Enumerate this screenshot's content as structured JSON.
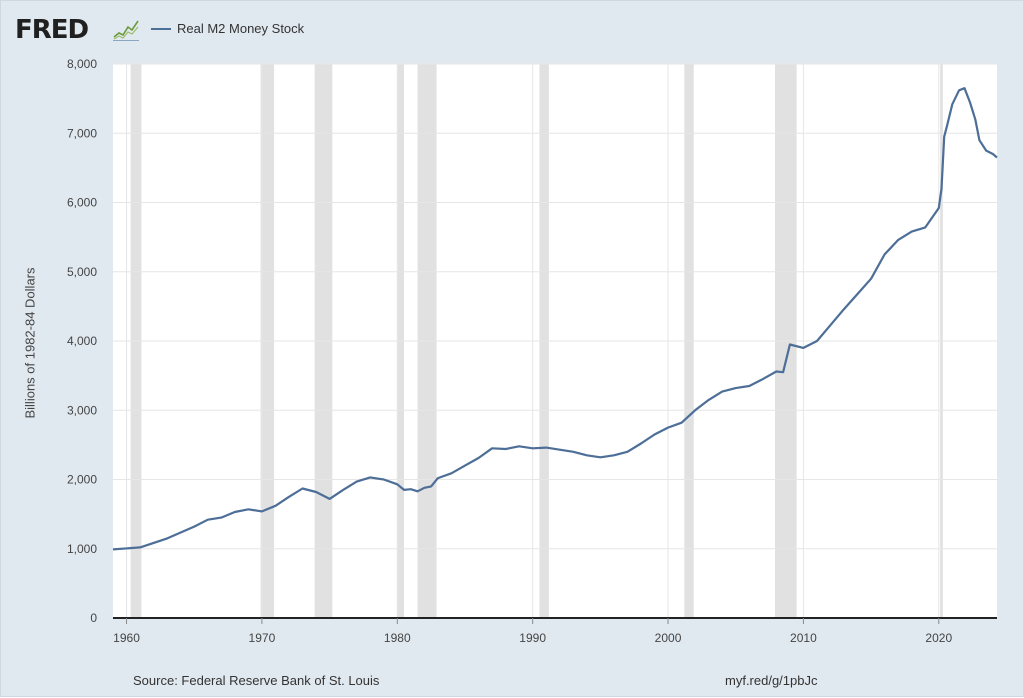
{
  "header": {
    "logo_text": "FRED",
    "logo_mark_icon": "fred-chart-logo-icon"
  },
  "legend": {
    "series_label": "Real M2 Money Stock",
    "line_color": "#4c6e97"
  },
  "footer": {
    "source": "Source: Federal Reserve Bank of St. Louis",
    "shortlink": "myf.red/g/1pbJc"
  },
  "colors": {
    "frame_bg": "#e1e9f0",
    "plot_bg": "#ffffff",
    "recession_shade": "#e1e1e1",
    "grid": "#e6e6e6",
    "series": "#4c6e97"
  },
  "chart_data": {
    "type": "line",
    "title": "",
    "xlabel": "",
    "ylabel": "Billions of 1982-84 Dollars",
    "xlim": [
      1959,
      2024.3
    ],
    "ylim": [
      0,
      8000
    ],
    "yticks": [
      0,
      1000,
      2000,
      3000,
      4000,
      5000,
      6000,
      7000,
      8000
    ],
    "ytick_labels": [
      "0",
      "1,000",
      "2,000",
      "3,000",
      "4,000",
      "5,000",
      "6,000",
      "7,000",
      "8,000"
    ],
    "xticks": [
      1960,
      1970,
      1980,
      1990,
      2000,
      2010,
      2020
    ],
    "xtick_labels": [
      "1960",
      "1970",
      "1980",
      "1990",
      "2000",
      "2010",
      "2020"
    ],
    "grid": true,
    "recessions": [
      [
        1960.3,
        1961.1
      ],
      [
        1969.9,
        1970.9
      ],
      [
        1973.9,
        1975.2
      ],
      [
        1980.0,
        1980.5
      ],
      [
        1981.5,
        1982.9
      ],
      [
        1990.5,
        1991.2
      ],
      [
        2001.2,
        2001.9
      ],
      [
        2007.9,
        2009.5
      ],
      [
        2020.1,
        2020.3
      ]
    ],
    "series": [
      {
        "name": "Real M2 Money Stock",
        "x": [
          1959.0,
          1961.0,
          1963.0,
          1965.0,
          1966.0,
          1967.0,
          1968.0,
          1969.0,
          1970.0,
          1971.0,
          1972.0,
          1973.0,
          1974.0,
          1975.0,
          1976.0,
          1977.0,
          1978.0,
          1979.0,
          1980.0,
          1980.5,
          1981.0,
          1981.5,
          1982.0,
          1982.5,
          1983.0,
          1984.0,
          1985.0,
          1986.0,
          1987.0,
          1988.0,
          1989.0,
          1990.0,
          1991.0,
          1992.0,
          1993.0,
          1994.0,
          1995.0,
          1996.0,
          1997.0,
          1998.0,
          1999.0,
          2000.0,
          2001.0,
          2002.0,
          2003.0,
          2004.0,
          2005.0,
          2006.0,
          2007.0,
          2008.0,
          2008.5,
          2009.0,
          2010.0,
          2011.0,
          2012.0,
          2013.0,
          2014.0,
          2015.0,
          2016.0,
          2017.0,
          2018.0,
          2019.0,
          2020.0,
          2020.2,
          2020.4,
          2020.6,
          2021.0,
          2021.5,
          2021.9,
          2022.3,
          2022.7,
          2023.0,
          2023.5,
          2024.0,
          2024.3
        ],
        "y": [
          990,
          1020,
          1150,
          1320,
          1420,
          1450,
          1530,
          1570,
          1540,
          1620,
          1750,
          1870,
          1820,
          1720,
          1850,
          1970,
          2030,
          2000,
          1930,
          1850,
          1860,
          1830,
          1880,
          1900,
          2020,
          2090,
          2200,
          2310,
          2450,
          2440,
          2480,
          2450,
          2460,
          2430,
          2400,
          2350,
          2320,
          2350,
          2400,
          2520,
          2650,
          2750,
          2820,
          3000,
          3150,
          3270,
          3320,
          3350,
          3450,
          3560,
          3550,
          3950,
          3900,
          4000,
          4230,
          4460,
          4680,
          4900,
          5250,
          5460,
          5580,
          5640,
          5920,
          6200,
          6950,
          7100,
          7420,
          7620,
          7650,
          7450,
          7200,
          6900,
          6750,
          6700,
          6650
        ]
      }
    ]
  }
}
